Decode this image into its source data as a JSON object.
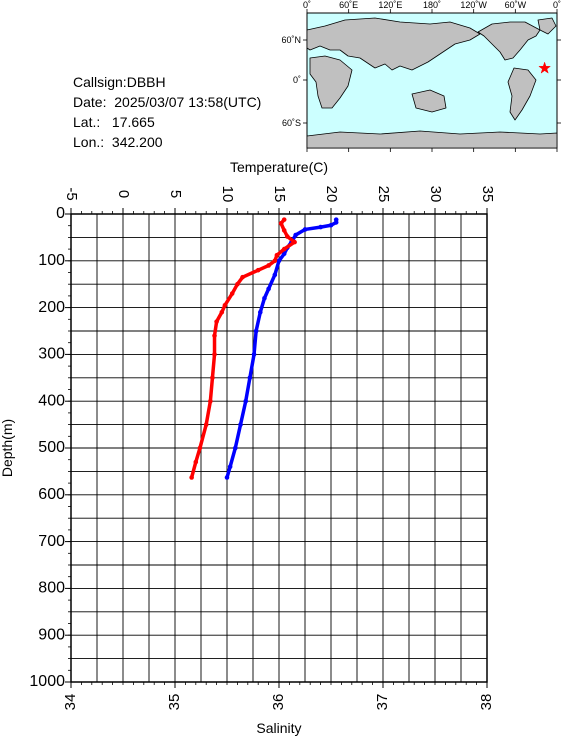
{
  "station": {
    "callsign_label": "Callsign:",
    "callsign": "DBBH",
    "date_label": "Date:",
    "date": "2025/03/07 13:58(UTC)",
    "lat_label": "Lat.:",
    "lat": "17.665",
    "lon_label": "Lon.:",
    "lon": "342.200"
  },
  "map": {
    "lon_ticks": [
      "0˚",
      "60˚E",
      "120˚E",
      "180˚",
      "120˚W",
      "60˚W",
      "0˚"
    ],
    "lat_ticks": [
      "60˚N",
      "0˚",
      "60˚S"
    ],
    "ocean_color": "#ccffff",
    "land_color": "#c0c0c0",
    "marker_color": "#ff0000",
    "marker_symbol": "star",
    "marker_lon": 342.2,
    "marker_lat": 17.665
  },
  "chart_data": {
    "type": "line",
    "top_axis_label": "Temperature(C)",
    "bottom_axis_label": "Salinity",
    "left_axis_label": "Depth(m)",
    "temperature_range": [
      -5,
      35
    ],
    "temperature_ticks": [
      "-5",
      "0",
      "5",
      "10",
      "15",
      "20",
      "25",
      "30",
      "35"
    ],
    "salinity_range": [
      34,
      38
    ],
    "salinity_ticks": [
      "34",
      "35",
      "36",
      "37",
      "38"
    ],
    "depth_range": [
      0,
      1000
    ],
    "depth_ticks": [
      "0",
      "100",
      "200",
      "300",
      "400",
      "500",
      "600",
      "700",
      "800",
      "900",
      "1000"
    ],
    "grid": true,
    "series": [
      {
        "variable": "temperature",
        "color": "#0000ff",
        "points": [
          [
            20.5,
            12
          ],
          [
            20.5,
            18
          ],
          [
            20.0,
            24
          ],
          [
            19.0,
            28
          ],
          [
            17.5,
            33
          ],
          [
            16.6,
            45
          ],
          [
            16.2,
            60
          ],
          [
            15.8,
            72
          ],
          [
            15.5,
            85
          ],
          [
            15.0,
            100
          ],
          [
            14.6,
            130
          ],
          [
            14.0,
            160
          ],
          [
            13.6,
            180
          ],
          [
            13.2,
            210
          ],
          [
            12.8,
            250
          ],
          [
            12.6,
            300
          ],
          [
            12.2,
            350
          ],
          [
            11.8,
            400
          ],
          [
            11.3,
            450
          ],
          [
            10.8,
            500
          ],
          [
            10.3,
            540
          ],
          [
            10.0,
            563
          ]
        ]
      },
      {
        "variable": "salinity",
        "color": "#ff0000",
        "points": [
          [
            36.05,
            12
          ],
          [
            36.02,
            20
          ],
          [
            36.05,
            35
          ],
          [
            36.08,
            48
          ],
          [
            36.15,
            60
          ],
          [
            36.05,
            75
          ],
          [
            35.98,
            88
          ],
          [
            35.96,
            100
          ],
          [
            35.9,
            110
          ],
          [
            35.8,
            120
          ],
          [
            35.65,
            135
          ],
          [
            35.6,
            150
          ],
          [
            35.55,
            170
          ],
          [
            35.48,
            195
          ],
          [
            35.45,
            210
          ],
          [
            35.4,
            230
          ],
          [
            35.38,
            260
          ],
          [
            35.38,
            300
          ],
          [
            35.36,
            350
          ],
          [
            35.34,
            400
          ],
          [
            35.3,
            450
          ],
          [
            35.24,
            500
          ],
          [
            35.2,
            530
          ],
          [
            35.16,
            563
          ]
        ]
      }
    ]
  }
}
